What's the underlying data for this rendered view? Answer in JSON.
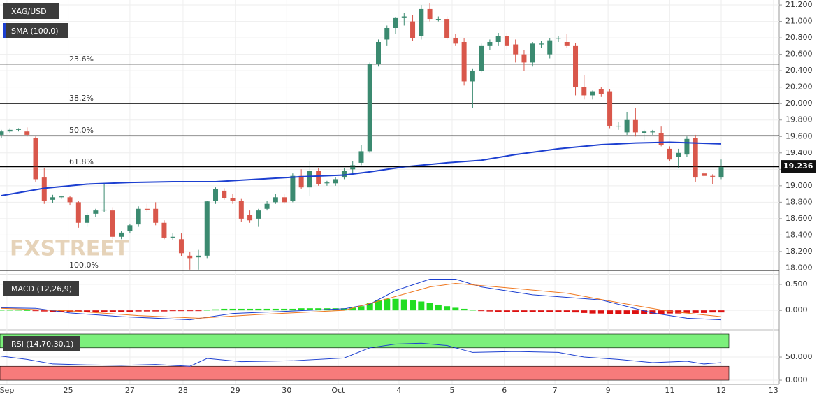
{
  "chart_data": {
    "type": "candlestick",
    "title": "XAG/USD",
    "watermark": "FXSTREET",
    "up_color": "#3b8a70",
    "down_color": "#d9574b",
    "xlim": [
      -0.16,
      90.77
    ],
    "xticks": [
      {
        "value": 0.65,
        "label": "Sep"
      },
      {
        "value": 7.8,
        "label": "25"
      },
      {
        "value": 15,
        "label": "27"
      },
      {
        "value": 21.2,
        "label": "28"
      },
      {
        "value": 27.3,
        "label": "29"
      },
      {
        "value": 33.3,
        "label": "30"
      },
      {
        "value": 39.3,
        "label": "Oct"
      },
      {
        "value": 46.4,
        "label": "4"
      },
      {
        "value": 52.6,
        "label": "5"
      },
      {
        "value": 58.7,
        "label": "6"
      },
      {
        "value": 64.6,
        "label": "7"
      },
      {
        "value": 70.8,
        "label": "9"
      },
      {
        "value": 78,
        "label": "11"
      },
      {
        "value": 84,
        "label": "12"
      },
      {
        "value": 90.1,
        "label": "13"
      }
    ],
    "ylim": [
      17.97,
      21.26
    ],
    "yticks": [
      {
        "value": 18,
        "label": "18.000"
      },
      {
        "value": 18.2,
        "label": "18.200"
      },
      {
        "value": 18.4,
        "label": "18.400"
      },
      {
        "value": 18.6,
        "label": "18.600"
      },
      {
        "value": 18.8,
        "label": "18.800"
      },
      {
        "value": 19,
        "label": "19.000"
      },
      {
        "value": 19.2,
        "label": "19.200"
      },
      {
        "value": 19.4,
        "label": "19.400"
      },
      {
        "value": 19.6,
        "label": "19.600"
      },
      {
        "value": 19.8,
        "label": "19.800"
      },
      {
        "value": 20,
        "label": "20.000"
      },
      {
        "value": 20.2,
        "label": "20.200"
      },
      {
        "value": 20.4,
        "label": "20.400"
      },
      {
        "value": 20.6,
        "label": "20.600"
      },
      {
        "value": 20.8,
        "label": "20.800"
      },
      {
        "value": 21,
        "label": "21.000"
      },
      {
        "value": 21.2,
        "label": "21.200"
      }
    ],
    "candles": [
      [
        19.62,
        19.68,
        19.58,
        19.66
      ],
      [
        19.66,
        19.7,
        19.64,
        19.68
      ],
      [
        19.68,
        19.7,
        19.66,
        19.69
      ],
      [
        19.66,
        19.71,
        19.6,
        19.62
      ],
      [
        19.58,
        19.6,
        19.05,
        19.08
      ],
      [
        19.1,
        19.22,
        18.78,
        18.82
      ],
      [
        18.83,
        18.89,
        18.79,
        18.86
      ],
      [
        18.86,
        18.88,
        18.84,
        18.87
      ],
      [
        18.86,
        18.88,
        18.76,
        18.8
      ],
      [
        18.8,
        18.82,
        18.49,
        18.55
      ],
      [
        18.55,
        18.67,
        18.5,
        18.65
      ],
      [
        18.66,
        18.72,
        18.62,
        18.7
      ],
      [
        18.7,
        19.03,
        18.68,
        18.71
      ],
      [
        18.7,
        18.74,
        18.35,
        18.38
      ],
      [
        18.38,
        18.45,
        18.35,
        18.43
      ],
      [
        18.45,
        18.54,
        18.42,
        18.52
      ],
      [
        18.53,
        18.75,
        18.5,
        18.72
      ],
      [
        18.72,
        18.78,
        18.68,
        18.71
      ],
      [
        18.72,
        18.8,
        18.52,
        18.55
      ],
      [
        18.55,
        18.58,
        18.35,
        18.37
      ],
      [
        18.37,
        18.42,
        18.34,
        18.38
      ],
      [
        18.35,
        18.42,
        18.14,
        18.18
      ],
      [
        18.15,
        18.2,
        17.98,
        18.12
      ],
      [
        18.13,
        18.22,
        17.98,
        18.15
      ],
      [
        18.15,
        18.82,
        18.12,
        18.81
      ],
      [
        18.82,
        18.98,
        18.78,
        18.96
      ],
      [
        18.94,
        18.97,
        18.83,
        18.85
      ],
      [
        18.85,
        18.9,
        18.78,
        18.82
      ],
      [
        18.82,
        18.84,
        18.56,
        18.6
      ],
      [
        18.65,
        18.7,
        18.55,
        18.58
      ],
      [
        18.6,
        18.72,
        18.5,
        18.7
      ],
      [
        18.72,
        18.82,
        18.7,
        18.78
      ],
      [
        18.8,
        18.9,
        18.78,
        18.86
      ],
      [
        18.86,
        18.9,
        18.78,
        18.8
      ],
      [
        18.82,
        19.15,
        18.8,
        19.12
      ],
      [
        19.12,
        19.2,
        18.96,
        18.98
      ],
      [
        18.98,
        19.3,
        18.88,
        19.18
      ],
      [
        19.18,
        19.22,
        19,
        19.02
      ],
      [
        19.03,
        19.06,
        19,
        19.04
      ],
      [
        19.03,
        19.1,
        19,
        19.08
      ],
      [
        19.1,
        19.22,
        19.08,
        19.18
      ],
      [
        19.2,
        19.3,
        19.15,
        19.25
      ],
      [
        19.28,
        19.5,
        19.25,
        19.42
      ],
      [
        19.42,
        20.5,
        19.4,
        20.48
      ],
      [
        20.48,
        20.78,
        20.45,
        20.75
      ],
      [
        20.78,
        20.95,
        20.7,
        20.92
      ],
      [
        20.92,
        21.05,
        20.85,
        21.04
      ],
      [
        21.04,
        21.1,
        20.95,
        21.06
      ],
      [
        21,
        21.08,
        20.76,
        20.8
      ],
      [
        20.82,
        21.2,
        20.78,
        21.15
      ],
      [
        21.15,
        21.22,
        21,
        21.03
      ],
      [
        21.02,
        21.06,
        21,
        21.03
      ],
      [
        21.03,
        21.06,
        20.78,
        20.8
      ],
      [
        20.8,
        20.85,
        20.7,
        20.73
      ],
      [
        20.75,
        20.8,
        20.22,
        20.27
      ],
      [
        20.27,
        20.42,
        19.95,
        20.4
      ],
      [
        20.4,
        20.73,
        20.38,
        20.7
      ],
      [
        20.7,
        20.78,
        20.65,
        20.75
      ],
      [
        20.75,
        20.86,
        20.7,
        20.82
      ],
      [
        20.82,
        20.86,
        20.66,
        20.7
      ],
      [
        20.72,
        20.78,
        20.5,
        20.6
      ],
      [
        20.6,
        20.65,
        20.4,
        20.5
      ],
      [
        20.5,
        20.75,
        20.45,
        20.73
      ],
      [
        20.72,
        20.76,
        20.68,
        20.73
      ],
      [
        20.6,
        20.8,
        20.55,
        20.77
      ],
      [
        20.79,
        20.82,
        20.75,
        20.8
      ],
      [
        20.75,
        20.85,
        20.68,
        20.7
      ],
      [
        20.7,
        20.74,
        20.1,
        20.2
      ],
      [
        20.2,
        20.35,
        20.05,
        20.1
      ],
      [
        20.1,
        20.16,
        20.05,
        20.15
      ],
      [
        20.18,
        20.2,
        20.08,
        20.12
      ],
      [
        20.15,
        20.18,
        19.7,
        19.73
      ],
      [
        19.72,
        19.78,
        19.68,
        19.73
      ],
      [
        19.65,
        19.9,
        19.62,
        19.8
      ],
      [
        19.8,
        19.95,
        19.6,
        19.65
      ],
      [
        19.64,
        19.68,
        19.55,
        19.66
      ],
      [
        19.65,
        19.68,
        19.62,
        19.66
      ],
      [
        19.64,
        19.72,
        19.48,
        19.5
      ],
      [
        19.45,
        19.48,
        19.3,
        19.32
      ],
      [
        19.35,
        19.45,
        19.22,
        19.4
      ],
      [
        19.38,
        19.6,
        19.35,
        19.57
      ],
      [
        19.58,
        19.62,
        19.05,
        19.1
      ],
      [
        19.15,
        19.18,
        19.1,
        19.12
      ],
      [
        19.12,
        19.14,
        19.02,
        19.11
      ],
      [
        19.1,
        19.32,
        19.08,
        19.23
      ]
    ],
    "sma": {
      "name": "SMA (100,0)",
      "color": "#1c3fd0",
      "x": [
        0,
        5,
        10,
        15,
        20,
        25,
        30,
        35,
        40,
        43,
        47,
        52,
        56,
        60,
        65,
        70,
        74,
        78,
        84
      ],
      "values": [
        18.88,
        18.97,
        19.02,
        19.04,
        19.05,
        19.05,
        19.08,
        19.11,
        19.13,
        19.17,
        19.23,
        19.28,
        19.31,
        19.38,
        19.45,
        19.5,
        19.52,
        19.53,
        19.51
      ]
    },
    "fib": [
      {
        "label": "23.6%",
        "value": 20.48
      },
      {
        "label": "38.2%",
        "value": 20.0
      },
      {
        "label": "50.0%",
        "value": 19.61
      },
      {
        "label": "61.8%",
        "value": 19.23
      },
      {
        "label": "100.0%",
        "value": 17.97
      }
    ],
    "last_price": 19.236,
    "macd": {
      "title": "MACD (12,26,9)",
      "ylim": [
        -0.32,
        0.62
      ],
      "yticks": [
        {
          "value": 0,
          "label": "0.000"
        },
        {
          "value": 0.5,
          "label": "0.500"
        }
      ],
      "up_color": "#22dd22",
      "down_color": "#dd1111",
      "histogram": [
        0.01,
        0.01,
        0.01,
        0.005,
        -0.01,
        -0.02,
        -0.03,
        -0.03,
        -0.03,
        -0.03,
        -0.03,
        -0.03,
        -0.03,
        -0.03,
        -0.03,
        -0.03,
        -0.02,
        -0.02,
        -0.02,
        -0.02,
        -0.01,
        -0.01,
        -0.01,
        -0.01,
        0.01,
        0.02,
        0.03,
        0.03,
        0.03,
        0.03,
        0.03,
        0.03,
        0.03,
        0.03,
        0.03,
        0.04,
        0.04,
        0.04,
        0.04,
        0.04,
        0.04,
        0.05,
        0.08,
        0.15,
        0.2,
        0.22,
        0.22,
        0.21,
        0.19,
        0.17,
        0.14,
        0.11,
        0.08,
        0.05,
        0.03,
        0.01,
        -0.01,
        -0.02,
        -0.03,
        -0.03,
        -0.03,
        -0.03,
        -0.03,
        -0.03,
        -0.03,
        -0.03,
        -0.03,
        -0.04,
        -0.05,
        -0.06,
        -0.06,
        -0.07,
        -0.07,
        -0.07,
        -0.07,
        -0.07,
        -0.07,
        -0.07,
        -0.06,
        -0.06,
        -0.05,
        -0.05,
        -0.05,
        -0.04,
        -0.04
      ],
      "macd_line": {
        "color": "#1c3fd0",
        "x": [
          0,
          4,
          8,
          14,
          22,
          27,
          33,
          40,
          43,
          46,
          50,
          53,
          56,
          62,
          70,
          76,
          80,
          84
        ],
        "values": [
          0.05,
          0.04,
          -0.05,
          -0.12,
          -0.18,
          -0.06,
          -0.02,
          0.03,
          0.12,
          0.38,
          0.6,
          0.6,
          0.45,
          0.3,
          0.2,
          -0.05,
          -0.15,
          -0.18
        ]
      },
      "signal_line": {
        "color": "#f07820",
        "x": [
          0,
          8,
          16,
          23,
          30,
          40,
          45,
          50,
          53,
          60,
          66,
          72,
          78,
          84
        ],
        "values": [
          0.04,
          -0.01,
          -0.1,
          -0.15,
          -0.08,
          0.0,
          0.22,
          0.45,
          0.52,
          0.42,
          0.33,
          0.15,
          -0.02,
          -0.12
        ]
      }
    },
    "rsi": {
      "title": "RSI (14,70,30,1)",
      "ylim": [
        -9,
        100
      ],
      "yticks": [
        {
          "value": 0,
          "label": "0.000"
        },
        {
          "value": 50,
          "label": "50.000"
        }
      ],
      "overbought": 70,
      "oversold": 30,
      "color": "#1c3fd0",
      "x": [
        0,
        3,
        6,
        10,
        14,
        18,
        22,
        24,
        28,
        34,
        40,
        43,
        46,
        49,
        52,
        55,
        60,
        65,
        68,
        72,
        76,
        80,
        82,
        84
      ],
      "values": [
        52,
        45,
        35,
        33,
        32,
        34,
        30,
        47,
        40,
        42,
        48,
        70,
        78,
        80,
        75,
        60,
        62,
        60,
        50,
        45,
        38,
        41,
        35,
        38
      ]
    }
  }
}
